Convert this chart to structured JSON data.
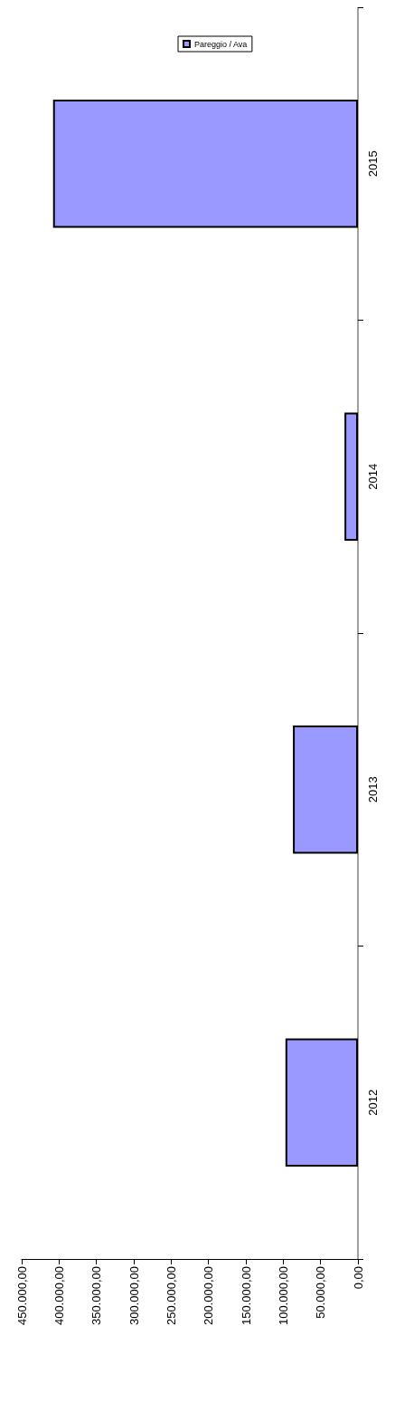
{
  "chart_data": {
    "type": "bar",
    "orientation": "horizontal",
    "categories": [
      "2015",
      "2014",
      "2013",
      "2012"
    ],
    "series": [
      {
        "name": "Pareggio / Ava",
        "color": "#9999ff",
        "values": [
          408000,
          18000,
          87000,
          97000
        ]
      }
    ],
    "xlim": [
      450000,
      0
    ],
    "xticks": [
      {
        "value": 450000,
        "label": "450.000,00"
      },
      {
        "value": 400000,
        "label": "400.000,00"
      },
      {
        "value": 350000,
        "label": "350.000,00"
      },
      {
        "value": 300000,
        "label": "300.000,00"
      },
      {
        "value": 250000,
        "label": "250.000,00"
      },
      {
        "value": 200000,
        "label": "200.000,00"
      },
      {
        "value": 150000,
        "label": "150.000,00"
      },
      {
        "value": 100000,
        "label": "100.000,00"
      },
      {
        "value": 50000,
        "label": "50.000,00"
      },
      {
        "value": 0,
        "label": "0,00"
      }
    ],
    "grid": false,
    "legend": "top"
  }
}
